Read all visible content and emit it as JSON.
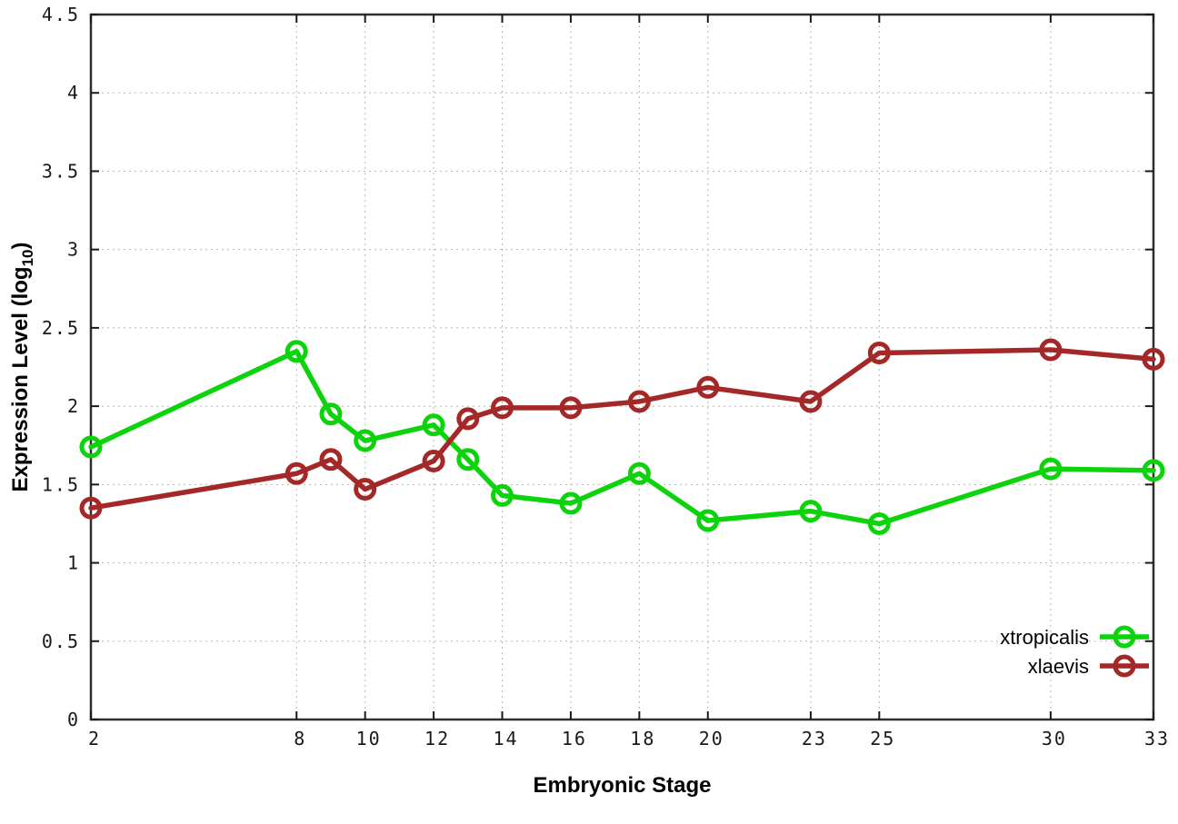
{
  "figure": {
    "background": "#ffffff"
  },
  "chart_data": {
    "type": "line",
    "title": "",
    "xlabel": "Embryonic Stage",
    "ylabel": "Expression Level (log10)",
    "ylabel_parts": {
      "pre": "Expression Level (log",
      "sub": "10",
      "post": ")"
    },
    "xlim": [
      2,
      33
    ],
    "ylim": [
      0,
      4.5
    ],
    "grid": true,
    "legend_position": "inside-bottom-right",
    "x_tick_values": [
      2,
      8,
      10,
      12,
      14,
      16,
      18,
      20,
      23,
      25,
      30,
      33
    ],
    "x_tick_labels": [
      "2",
      "8",
      "10",
      "12",
      "14",
      "16",
      "18",
      "20",
      "23",
      "25",
      "30",
      "33"
    ],
    "y_tick_values": [
      0,
      0.5,
      1,
      1.5,
      2,
      2.5,
      3,
      3.5,
      4,
      4.5
    ],
    "y_tick_labels": [
      "0",
      "0.5",
      "1",
      "1.5",
      "2",
      "2.5",
      "3",
      "3.5",
      "4",
      "4.5"
    ],
    "x": [
      2,
      8,
      9,
      10,
      12,
      13,
      14,
      16,
      18,
      20,
      23,
      25,
      30,
      33
    ],
    "series": [
      {
        "name": "xtropicalis",
        "color": "#0dd30d",
        "values": [
          1.74,
          2.35,
          1.95,
          1.78,
          1.88,
          1.66,
          1.43,
          1.38,
          1.57,
          1.27,
          1.33,
          1.25,
          1.6,
          1.59
        ]
      },
      {
        "name": "xlaevis",
        "color": "#a52828",
        "values": [
          1.35,
          1.57,
          1.66,
          1.47,
          1.65,
          1.92,
          1.99,
          1.99,
          2.03,
          2.12,
          2.03,
          2.34,
          2.36,
          2.3
        ]
      }
    ],
    "style": {
      "grid_color": "#b8b8b8",
      "border_color": "#2e2e2e",
      "tick_color": "#1a1a1a",
      "line_width": 5.5,
      "marker_radius": 10,
      "marker_stroke_width": 5
    }
  }
}
